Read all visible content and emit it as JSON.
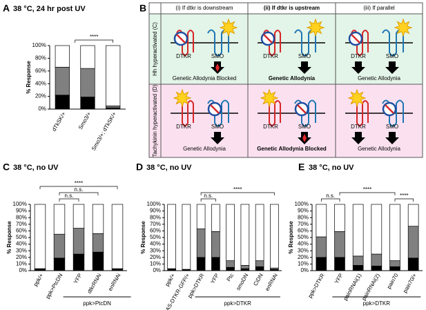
{
  "chart_data": [
    {
      "type": "stacked_bar",
      "panel": "A",
      "title": "38 °C, 24 hr post UV",
      "ylabel": "% Response",
      "categories": [
        "dTkSK/+",
        "Smo3/+",
        "Smo3/+; dTkSK/+"
      ],
      "series": [
        {
          "color": "#000000",
          "values": [
            22,
            19,
            2
          ]
        },
        {
          "color": "#808080",
          "values": [
            44,
            45,
            3
          ]
        },
        {
          "color": "#ffffff",
          "values": [
            34,
            36,
            95
          ]
        }
      ],
      "ylim": [
        0,
        100
      ],
      "yticks": [
        {
          "value": 0,
          "label": "0%"
        },
        {
          "value": 20,
          "label": "20%"
        },
        {
          "value": 40,
          "label": "40%"
        },
        {
          "value": 60,
          "label": "60%"
        },
        {
          "value": 80,
          "label": "80%"
        },
        {
          "value": 100,
          "label": "100%"
        }
      ],
      "annotations": [
        "****"
      ]
    },
    {
      "type": "stacked_bar",
      "panel": "C",
      "title": "38 °C, no UV",
      "ylabel": "% Response",
      "categories": [
        "ppk/+",
        "ppk>PtcDN",
        "YFP",
        "dtkrRNAi",
        "enRNAi"
      ],
      "group_label": "ppk>PtcDN",
      "series": [
        {
          "color": "#000000",
          "values": [
            3,
            19,
            25,
            28,
            3
          ]
        },
        {
          "color": "#808080",
          "values": [
            0,
            36,
            39,
            28,
            0
          ]
        },
        {
          "color": "#ffffff",
          "values": [
            97,
            45,
            36,
            44,
            97
          ]
        }
      ],
      "ylim": [
        0,
        100
      ],
      "yticks": [
        {
          "value": 0,
          "label": "0%"
        },
        {
          "value": 10,
          "label": "10%"
        },
        {
          "value": 20,
          "label": "20%"
        },
        {
          "value": 30,
          "label": "30%"
        },
        {
          "value": 40,
          "label": "40%"
        },
        {
          "value": 50,
          "label": "50%"
        },
        {
          "value": 60,
          "label": "60%"
        },
        {
          "value": 70,
          "label": "70%"
        },
        {
          "value": 80,
          "label": "80%"
        },
        {
          "value": 90,
          "label": "90%"
        },
        {
          "value": 100,
          "label": "100%"
        }
      ],
      "annotations": [
        "n.s.",
        "n.s.",
        "****"
      ]
    },
    {
      "type": "stacked_bar",
      "panel": "D",
      "title": "38 °C, no UV",
      "ylabel": "% Response",
      "categories": [
        "ppk/+",
        "UAS-DTKR-GFP/+",
        "ppk>DTKR",
        "YFP",
        "Ptc",
        "smoDN",
        "CiDN",
        "enRNAi"
      ],
      "group_label": "ppk>DTKR",
      "series": [
        {
          "color": "#000000",
          "values": [
            3,
            2,
            20,
            20,
            5,
            3,
            6,
            2
          ]
        },
        {
          "color": "#808080",
          "values": [
            0,
            0,
            43,
            39,
            10,
            5,
            9,
            2
          ]
        },
        {
          "color": "#ffffff",
          "values": [
            97,
            98,
            37,
            41,
            85,
            92,
            85,
            96
          ]
        }
      ],
      "ylim": [
        0,
        100
      ],
      "yticks": [
        {
          "value": 0,
          "label": "0%"
        },
        {
          "value": 10,
          "label": "10%"
        },
        {
          "value": 20,
          "label": "20%"
        },
        {
          "value": 30,
          "label": "30%"
        },
        {
          "value": 40,
          "label": "40%"
        },
        {
          "value": 50,
          "label": "50%"
        },
        {
          "value": 60,
          "label": "60%"
        },
        {
          "value": 70,
          "label": "70%"
        },
        {
          "value": 80,
          "label": "80%"
        },
        {
          "value": 90,
          "label": "90%"
        },
        {
          "value": 100,
          "label": "100%"
        }
      ],
      "annotations": [
        "n.s.",
        "****"
      ]
    },
    {
      "type": "stacked_bar",
      "panel": "E",
      "title": "38 °C, no UV",
      "ylabel": "% Response",
      "categories": [
        "ppk>DTKR",
        "YFP",
        "painRNAi(1)",
        "painRNAi(2)",
        "pain70",
        "pain70/+"
      ],
      "group_label": "ppk>DTKR",
      "series": [
        {
          "color": "#000000",
          "values": [
            20,
            20,
            8,
            7,
            6,
            19
          ]
        },
        {
          "color": "#808080",
          "values": [
            31,
            39,
            14,
            18,
            9,
            48
          ]
        },
        {
          "color": "#ffffff",
          "values": [
            49,
            41,
            78,
            75,
            85,
            33
          ]
        }
      ],
      "ylim": [
        0,
        100
      ],
      "yticks": [
        {
          "value": 0,
          "label": "0%"
        },
        {
          "value": 10,
          "label": "10%"
        },
        {
          "value": 20,
          "label": "20%"
        },
        {
          "value": 30,
          "label": "30%"
        },
        {
          "value": 40,
          "label": "40%"
        },
        {
          "value": 50,
          "label": "50%"
        },
        {
          "value": 60,
          "label": "60%"
        },
        {
          "value": 70,
          "label": "70%"
        },
        {
          "value": 80,
          "label": "80%"
        },
        {
          "value": 90,
          "label": "90%"
        },
        {
          "value": 100,
          "label": "100%"
        }
      ],
      "annotations": [
        "n.s.",
        "****",
        "****"
      ]
    }
  ],
  "diagram": {
    "panel": "B",
    "columns": [
      "(i) If dtkr is downstream",
      "(ii) If dtkr is upstream",
      "(iii) If parallel"
    ],
    "receptors": [
      "DTKR",
      "SMO"
    ],
    "rows": [
      {
        "label": "Hh hyperactivated (C)",
        "outcomes": [
          "Genetic Allodynia Blocked",
          "Genetic Allodynia",
          "Genetic Allodynia"
        ]
      },
      {
        "label": "Tachykinin hyperactivated (D)",
        "outcomes": [
          "Genetic Allodynia",
          "Genetic Allodynia Blocked",
          "Genetic Allodynia"
        ]
      }
    ]
  }
}
